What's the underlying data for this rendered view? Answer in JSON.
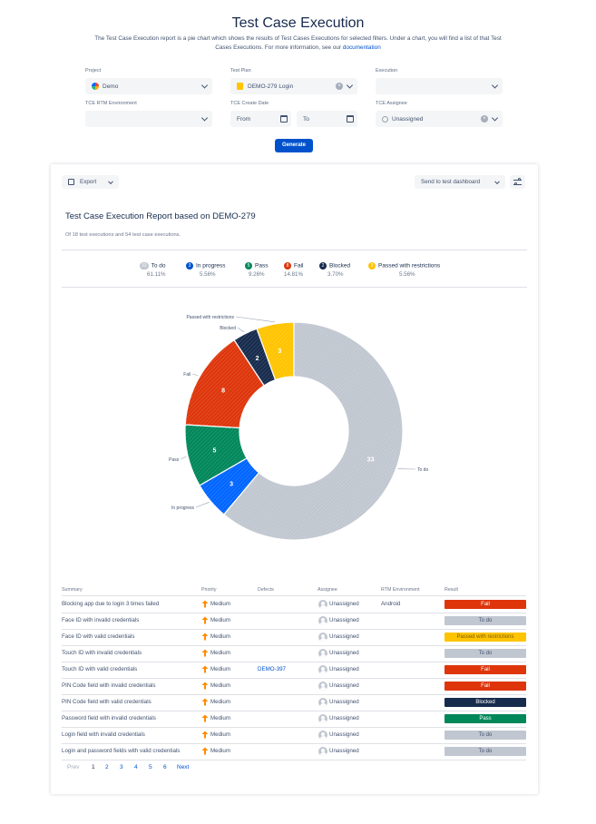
{
  "header": {
    "title": "Test Case Execution",
    "description": "The Test Case Execution report is a pie chart which shows the results of Test Cases Executions for selected filters. Under a chart, you will find a list of that Test Cases Executions. For more information, see our ",
    "doc_link": "documentation"
  },
  "filters": {
    "project_label": "Project",
    "project_value": "Demo",
    "test_plan_label": "Test Plan",
    "test_plan_value": "DEMO-279   Login",
    "execution_label": "Execution",
    "execution_value": "",
    "env_label": "TCE RTM Environment",
    "env_value": "",
    "date_label": "TCE Create Date",
    "from_placeholder": "From",
    "to_placeholder": "To",
    "assignee_label": "TCE Assignee",
    "assignee_value": "Unassigned",
    "generate_label": "Generate"
  },
  "report": {
    "export_label": "Export",
    "dashboard_label": "Send to test dashboard",
    "title": "Test Case Execution Report based on DEMO-279",
    "subtitle": "Of 18 test executions and 54 test case executions."
  },
  "colors": {
    "todo": "#c1c7d0",
    "in_progress": "#0052cc",
    "pass": "#00875a",
    "fail": "#de350b",
    "blocked": "#172b4d",
    "passed_restrictions": "#ffc400"
  },
  "legend": [
    {
      "badge": "33",
      "label": "To do",
      "pct": "61.11%",
      "color": "#c1c7d0"
    },
    {
      "badge": "3",
      "label": "In progress",
      "pct": "5.56%",
      "color": "#0052cc"
    },
    {
      "badge": "5",
      "label": "Pass",
      "pct": "9.26%",
      "color": "#00875a"
    },
    {
      "badge": "8",
      "label": "Fail",
      "pct": "14.81%",
      "color": "#de350b"
    },
    {
      "badge": "2",
      "label": "Blocked",
      "pct": "3.70%",
      "color": "#172b4d"
    },
    {
      "badge": "3",
      "label": "Passed with restrictions",
      "pct": "5.56%",
      "color": "#ffc400"
    }
  ],
  "chart_data": {
    "type": "pie",
    "categories": [
      "Passed with restrictions",
      "Blocked",
      "Fail",
      "Pass",
      "In progress",
      "To do"
    ],
    "values": [
      3,
      2,
      8,
      5,
      3,
      33
    ],
    "colors": [
      "#ffc400",
      "#172b4d",
      "#de350b",
      "#00875a",
      "#0065ff",
      "#c1c7d0"
    ],
    "donut": true,
    "title": ""
  },
  "table": {
    "headers": [
      "Summary",
      "Priority",
      "Defects",
      "Assignee",
      "RTM Environment",
      "Result"
    ],
    "rows": [
      {
        "summary": "Blocking app due to login 3 times failed",
        "priority": "Medium",
        "defects": "",
        "assignee": "Unassigned",
        "env": "Android",
        "result": "Fail",
        "result_key": "fail"
      },
      {
        "summary": "Face ID with invalid credentials",
        "priority": "Medium",
        "defects": "",
        "assignee": "Unassigned",
        "env": "",
        "result": "To do",
        "result_key": "todo"
      },
      {
        "summary": "Face ID with valid credentials",
        "priority": "Medium",
        "defects": "",
        "assignee": "Unassigned",
        "env": "",
        "result": "Passed with restrictions",
        "result_key": "passed_restrictions"
      },
      {
        "summary": "Touch ID with invalid credentials",
        "priority": "Medium",
        "defects": "",
        "assignee": "Unassigned",
        "env": "",
        "result": "To do",
        "result_key": "todo"
      },
      {
        "summary": "Touch ID with valid credentials",
        "priority": "Medium",
        "defects": "DEMO-397",
        "assignee": "Unassigned",
        "env": "",
        "result": "Fail",
        "result_key": "fail"
      },
      {
        "summary": "PIN Code field with invalid credentials",
        "priority": "Medium",
        "defects": "",
        "assignee": "Unassigned",
        "env": "",
        "result": "Fail",
        "result_key": "fail"
      },
      {
        "summary": "PIN Code field with valid credentials",
        "priority": "Medium",
        "defects": "",
        "assignee": "Unassigned",
        "env": "",
        "result": "Blocked",
        "result_key": "blocked"
      },
      {
        "summary": "Password field with invalid credentials",
        "priority": "Medium",
        "defects": "",
        "assignee": "Unassigned",
        "env": "",
        "result": "Pass",
        "result_key": "pass"
      },
      {
        "summary": "Login field with invalid credentials",
        "priority": "Medium",
        "defects": "",
        "assignee": "Unassigned",
        "env": "",
        "result": "To do",
        "result_key": "todo"
      },
      {
        "summary": "Login and password fields with valid credentials",
        "priority": "Medium",
        "defects": "",
        "assignee": "Unassigned",
        "env": "",
        "result": "To do",
        "result_key": "todo"
      }
    ]
  },
  "pagination": {
    "prev": "Prev",
    "pages": [
      "1",
      "2",
      "3",
      "4",
      "5",
      "6"
    ],
    "current": "1",
    "next": "Next"
  }
}
